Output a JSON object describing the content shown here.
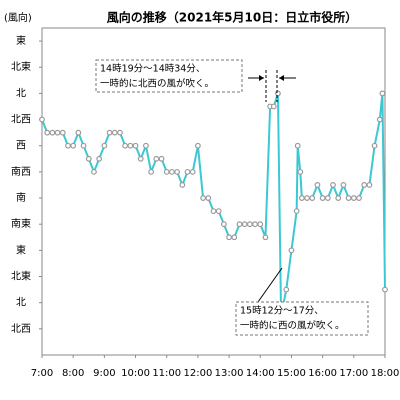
{
  "chart_data": {
    "type": "line",
    "title": "風向の推移（2021年5月10日：日立市役所）",
    "y_label": "(風向)",
    "color": "#3cc8d2",
    "marker_color": "#999999",
    "grid": false,
    "xlim": [
      420,
      1080
    ],
    "xticks": [
      {
        "value": 420,
        "label": "7:00"
      },
      {
        "value": 480,
        "label": "8:00"
      },
      {
        "value": 540,
        "label": "9:00"
      },
      {
        "value": 600,
        "label": "10:00"
      },
      {
        "value": 660,
        "label": "11:00"
      },
      {
        "value": 720,
        "label": "12:00"
      },
      {
        "value": 780,
        "label": "13:00"
      },
      {
        "value": 840,
        "label": "14:00"
      },
      {
        "value": 900,
        "label": "15:00"
      },
      {
        "value": 960,
        "label": "16:00"
      },
      {
        "value": 1020,
        "label": "17:00"
      },
      {
        "value": 1080,
        "label": "18:00"
      }
    ],
    "ylim": [
      -1,
      11.5
    ],
    "yticks": [
      {
        "value": 0,
        "label": "北西"
      },
      {
        "value": 1,
        "label": "北"
      },
      {
        "value": 2,
        "label": "北東"
      },
      {
        "value": 3,
        "label": "東"
      },
      {
        "value": 4,
        "label": "南東"
      },
      {
        "value": 5,
        "label": "南"
      },
      {
        "value": 6,
        "label": "南西"
      },
      {
        "value": 7,
        "label": "西"
      },
      {
        "value": 8,
        "label": "北西"
      },
      {
        "value": 9,
        "label": "北"
      },
      {
        "value": 10,
        "label": "北東"
      },
      {
        "value": 11,
        "label": "東"
      }
    ],
    "x": [
      420,
      430,
      440,
      450,
      460,
      470,
      480,
      490,
      500,
      510,
      520,
      530,
      540,
      550,
      560,
      570,
      580,
      590,
      600,
      610,
      620,
      630,
      640,
      650,
      660,
      670,
      680,
      690,
      700,
      710,
      720,
      730,
      740,
      750,
      760,
      770,
      780,
      790,
      800,
      810,
      820,
      830,
      840,
      850,
      859,
      866,
      874,
      880,
      890,
      900,
      910,
      912,
      917,
      920,
      930,
      940,
      950,
      960,
      970,
      980,
      990,
      1000,
      1010,
      1020,
      1030,
      1040,
      1050,
      1060,
      1070,
      1075,
      1080
    ],
    "values": [
      8,
      7.5,
      7.5,
      7.5,
      7.5,
      7,
      7,
      7.5,
      7,
      6.5,
      6,
      6.5,
      7,
      7.5,
      7.5,
      7.5,
      7,
      7,
      7,
      6.5,
      7,
      6,
      6.5,
      6.5,
      6,
      6,
      6,
      5.5,
      6,
      6,
      7,
      5,
      5,
      4.5,
      4.5,
      4,
      3.5,
      3.5,
      4,
      4,
      4,
      4,
      4,
      3.5,
      8.5,
      8.5,
      9,
      0.5,
      1.5,
      3,
      4.5,
      7,
      6,
      5,
      5,
      5,
      5.5,
      5,
      5,
      5.5,
      5,
      5.5,
      5,
      5,
      5,
      5.5,
      5.5,
      7,
      8,
      9,
      1.5
    ],
    "annotations": [
      {
        "lines": [
          "14時19分～14時34分、",
          "一時的に北西の風が吹く。"
        ]
      },
      {
        "lines": [
          "15時12分～17分、",
          "一時的に西の風が吹く。"
        ]
      }
    ]
  }
}
